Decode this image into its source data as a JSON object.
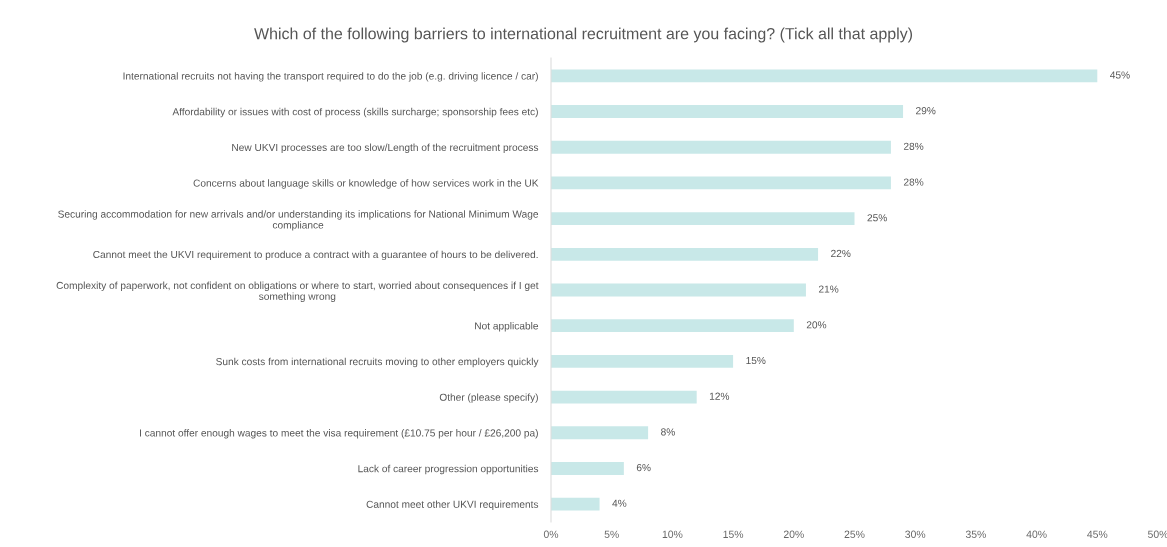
{
  "chart_data": {
    "type": "bar",
    "orientation": "horizontal",
    "title": "Which of the following barriers to international recruitment are you facing? (Tick all that apply)",
    "categories": [
      "International recruits not having the transport required to do the job (e.g. driving licence / car)",
      "Affordability or issues with cost of process (skills surcharge; sponsorship fees etc)",
      "New UKVI processes are too slow/Length of the recruitment process",
      "Concerns about language skills or knowledge of how services work in the UK",
      "Securing accommodation for new arrivals and/or understanding its implications for National Minimum Wage\ncompliance",
      "Cannot meet the UKVI requirement to produce a contract with a guarantee of hours to be delivered.",
      "Complexity of paperwork, not confident on obligations or where to start, worried about consequences if I get\nsomething wrong",
      "Not applicable",
      "Sunk costs from international recruits moving to other employers quickly",
      "Other (please specify)",
      "I cannot offer enough wages to meet the visa requirement (£10.75 per hour / £26,200 pa)",
      "Lack of career progression opportunities",
      "Cannot meet other UKVI requirements"
    ],
    "values": [
      45,
      29,
      28,
      28,
      25,
      22,
      21,
      20,
      15,
      12,
      8,
      6,
      4
    ],
    "value_labels": [
      "45%",
      "29%",
      "28%",
      "28%",
      "25%",
      "22%",
      "21%",
      "20%",
      "15%",
      "12%",
      "8%",
      "6%",
      "4%"
    ],
    "color": "#c8e8e8",
    "xlim": [
      0,
      50
    ],
    "xticks": [
      {
        "value": 0,
        "label": "0%"
      },
      {
        "value": 5,
        "label": "5%"
      },
      {
        "value": 10,
        "label": "10%"
      },
      {
        "value": 15,
        "label": "15%"
      },
      {
        "value": 20,
        "label": "20%"
      },
      {
        "value": 25,
        "label": "25%"
      },
      {
        "value": 30,
        "label": "30%"
      },
      {
        "value": 35,
        "label": "35%"
      },
      {
        "value": 40,
        "label": "40%"
      },
      {
        "value": 45,
        "label": "45%"
      },
      {
        "value": 50,
        "label": "50%"
      }
    ],
    "grid": false,
    "legend": false
  }
}
